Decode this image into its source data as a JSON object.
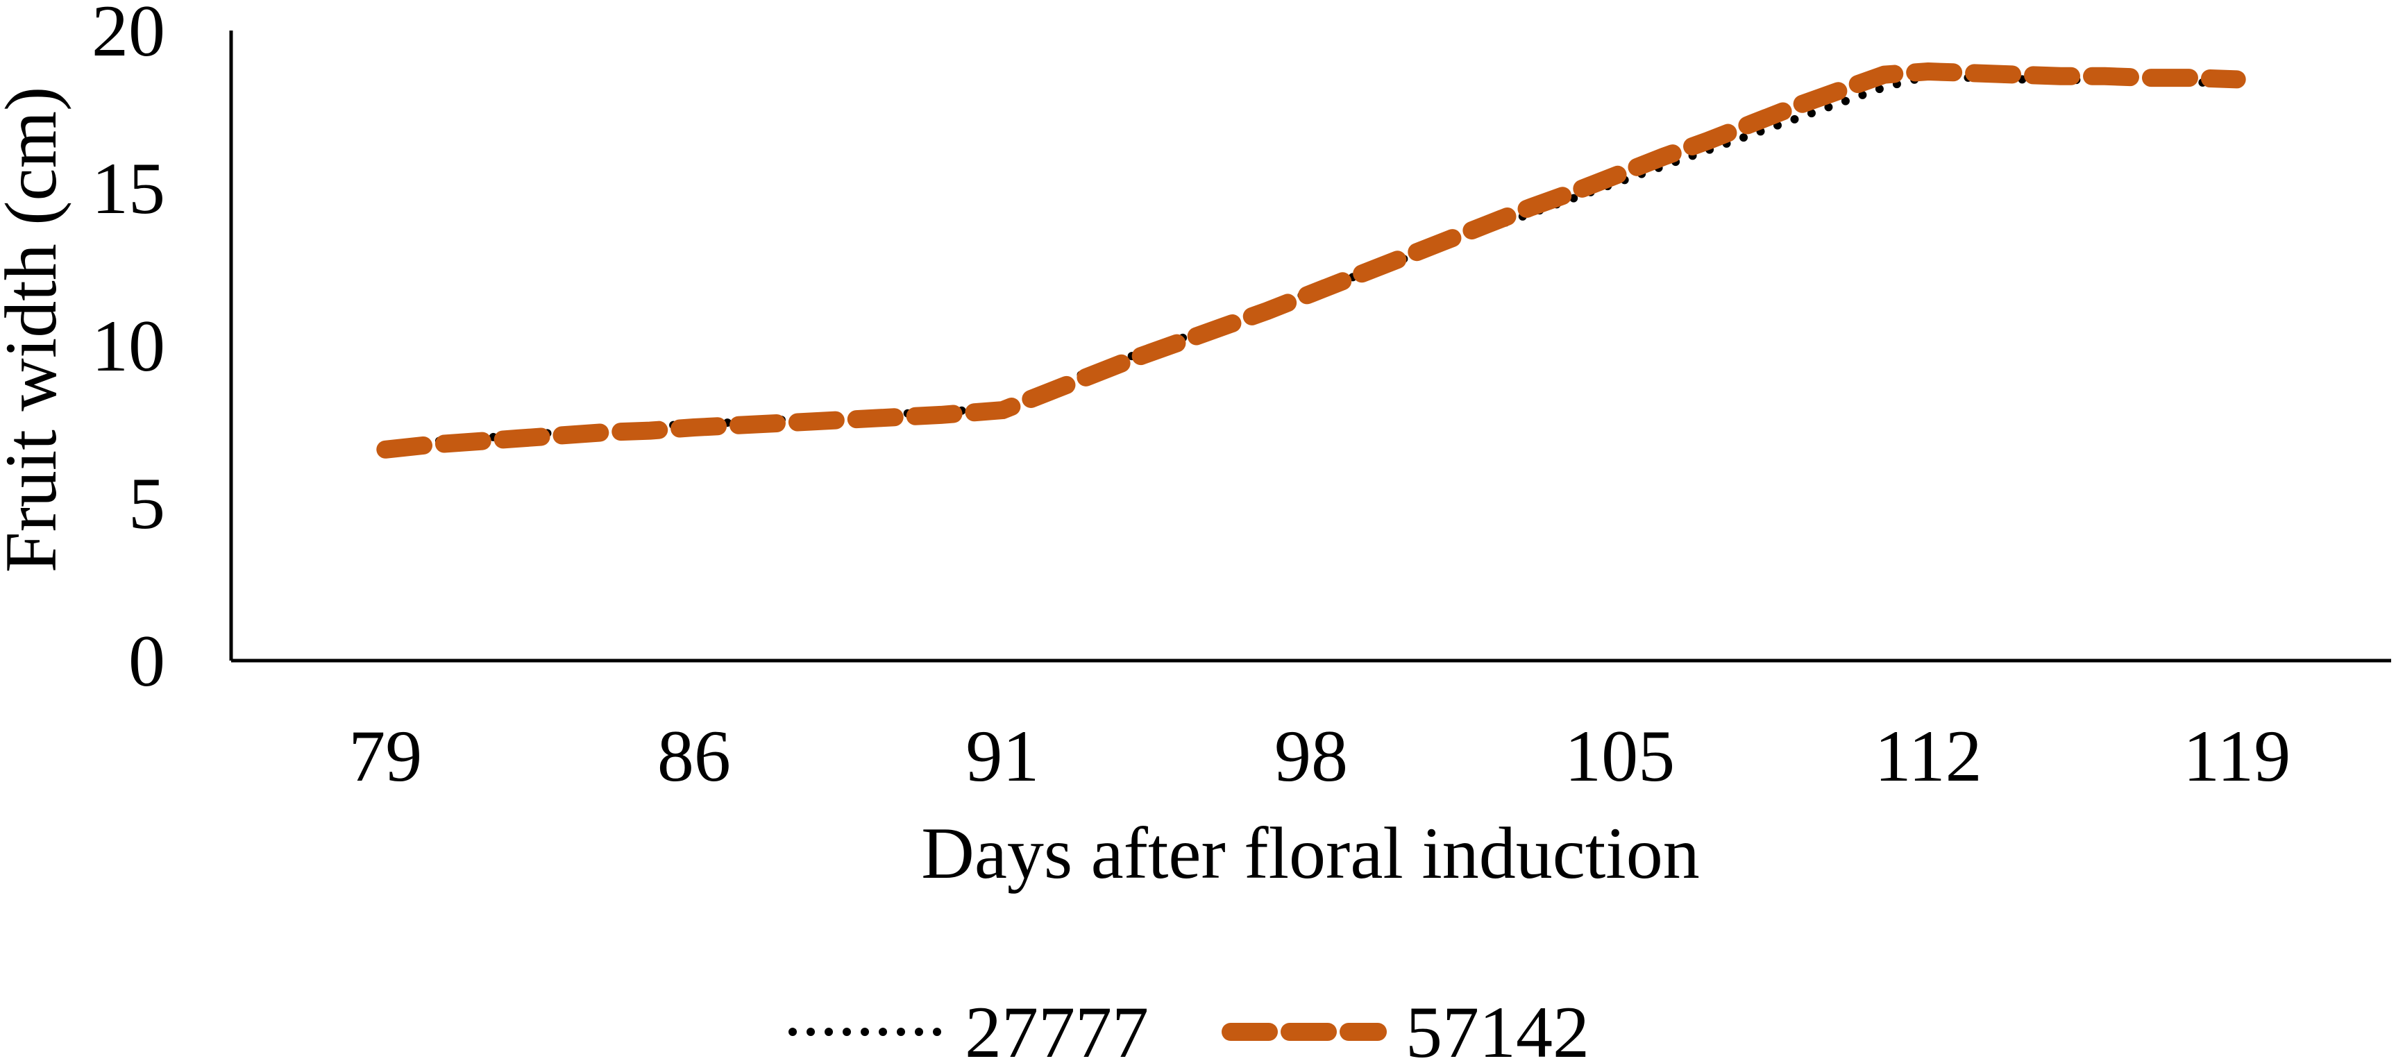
{
  "chart_data": {
    "type": "line",
    "xlabel": "Days after floral induction",
    "ylabel": "Fruit width (cm)",
    "categories": [
      "79",
      "86",
      "91",
      "98",
      "105",
      "112",
      "119"
    ],
    "ylim": [
      0,
      20
    ],
    "yticks": [
      "0",
      "5",
      "10",
      "15",
      "20"
    ],
    "grid": false,
    "legend_position": "bottom",
    "series": [
      {
        "name": "27777",
        "style": "dotted",
        "color": "#000000",
        "x": [
          79,
          80,
          81,
          82,
          83,
          84,
          85,
          86,
          87,
          88,
          89,
          90,
          91,
          92,
          93,
          94,
          95,
          96,
          97,
          98,
          99,
          100,
          101,
          102,
          103,
          104,
          105,
          106,
          107,
          108,
          109,
          110,
          111,
          112,
          113,
          114,
          115,
          116,
          117,
          118,
          119
        ],
        "values": [
          6.8,
          6.95,
          7.05,
          7.15,
          7.25,
          7.35,
          7.45,
          7.5,
          7.6,
          7.7,
          7.8,
          7.9,
          8.0,
          8.6,
          9.2,
          9.7,
          10.2,
          10.7,
          11.2,
          11.7,
          12.2,
          12.7,
          13.2,
          13.7,
          14.2,
          14.7,
          15.2,
          15.7,
          16.2,
          16.7,
          17.2,
          17.7,
          18.2,
          18.55,
          18.5,
          18.45,
          18.45,
          18.4,
          18.4,
          18.35,
          18.35
        ]
      },
      {
        "name": "57142",
        "style": "dashed",
        "color": "#C55A11",
        "x": [
          79,
          80,
          81,
          82,
          83,
          84,
          85,
          86,
          87,
          88,
          89,
          90,
          91,
          92,
          93,
          94,
          95,
          96,
          97,
          98,
          99,
          100,
          101,
          102,
          103,
          104,
          105,
          106,
          107,
          108,
          109,
          110,
          111,
          112,
          113,
          114,
          115,
          116,
          117,
          118,
          119
        ],
        "values": [
          6.7,
          6.85,
          6.95,
          7.05,
          7.15,
          7.25,
          7.3,
          7.4,
          7.5,
          7.6,
          7.7,
          7.8,
          7.95,
          8.5,
          9.05,
          9.6,
          10.1,
          10.6,
          11.1,
          11.65,
          12.2,
          12.75,
          13.3,
          13.85,
          14.4,
          14.9,
          15.45,
          16.0,
          16.5,
          17.05,
          17.6,
          18.1,
          18.6,
          18.7,
          18.65,
          18.6,
          18.55,
          18.55,
          18.5,
          18.5,
          18.45
        ]
      }
    ]
  }
}
